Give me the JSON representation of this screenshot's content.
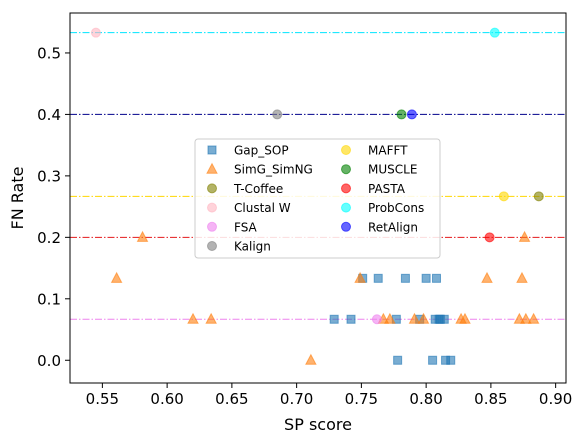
{
  "chart_data": {
    "type": "scatter",
    "xlabel": "SP score",
    "ylabel": "FN Rate",
    "xlim": [
      0.525,
      0.908
    ],
    "ylim": [
      -0.037,
      0.565
    ],
    "xticks": [
      0.55,
      0.6,
      0.65,
      0.7,
      0.75,
      0.8,
      0.85,
      0.9
    ],
    "xtick_labels": [
      "0.55",
      "0.60",
      "0.65",
      "0.70",
      "0.75",
      "0.80",
      "0.85",
      "0.90"
    ],
    "yticks": [
      0.0,
      0.1,
      0.2,
      0.3,
      0.4,
      0.5
    ],
    "ytick_labels": [
      "0.0",
      "0.1",
      "0.2",
      "0.3",
      "0.4",
      "0.5"
    ],
    "grid": false,
    "legend_position": "center-left, two columns",
    "hlines": [
      {
        "y": 0.533,
        "color": "#00e5ff"
      },
      {
        "y": 0.4,
        "color": "#00008b"
      },
      {
        "y": 0.2667,
        "color": "#ffd700"
      },
      {
        "y": 0.2,
        "color": "#e41a1c"
      },
      {
        "y": 0.0667,
        "color": "#ee82ee"
      }
    ],
    "series": [
      {
        "name": "Gap_SOP",
        "marker": "square",
        "color": "#1f77b4",
        "points": [
          [
            0.729,
            0.0667
          ],
          [
            0.742,
            0.0667
          ],
          [
            0.751,
            0.1333
          ],
          [
            0.763,
            0.1333
          ],
          [
            0.778,
            0.0
          ],
          [
            0.777,
            0.0667
          ],
          [
            0.784,
            0.1333
          ],
          [
            0.795,
            0.0667
          ],
          [
            0.8,
            0.1333
          ],
          [
            0.805,
            0.0
          ],
          [
            0.807,
            0.0667
          ],
          [
            0.808,
            0.1333
          ],
          [
            0.81,
            0.0667
          ],
          [
            0.811,
            0.0667
          ],
          [
            0.814,
            0.0667
          ],
          [
            0.815,
            0.0
          ],
          [
            0.819,
            0.0
          ]
        ]
      },
      {
        "name": "SimG_SimNG",
        "marker": "triangle",
        "color": "#ff7f0e",
        "points": [
          [
            0.561,
            0.1333
          ],
          [
            0.581,
            0.2
          ],
          [
            0.62,
            0.0667
          ],
          [
            0.634,
            0.0667
          ],
          [
            0.711,
            0.0
          ],
          [
            0.749,
            0.1333
          ],
          [
            0.767,
            0.0667
          ],
          [
            0.772,
            0.0667
          ],
          [
            0.791,
            0.0667
          ],
          [
            0.798,
            0.0667
          ],
          [
            0.827,
            0.0667
          ],
          [
            0.83,
            0.0667
          ],
          [
            0.847,
            0.1333
          ],
          [
            0.872,
            0.0667
          ],
          [
            0.874,
            0.1333
          ],
          [
            0.876,
            0.2
          ],
          [
            0.877,
            0.0667
          ],
          [
            0.883,
            0.0667
          ]
        ]
      },
      {
        "name": "T-Coffee",
        "marker": "circle",
        "color": "#808000",
        "points": [
          [
            0.887,
            0.2667
          ]
        ]
      },
      {
        "name": "Clustal W",
        "marker": "circle",
        "color": "#ffb6c1",
        "points": [
          [
            0.545,
            0.533
          ]
        ]
      },
      {
        "name": "FSA",
        "marker": "circle",
        "color": "#ee82ee",
        "points": [
          [
            0.762,
            0.0667
          ]
        ]
      },
      {
        "name": "Kalign",
        "marker": "circle",
        "color": "#808080",
        "points": [
          [
            0.685,
            0.4
          ]
        ]
      },
      {
        "name": "MAFFT",
        "marker": "circle",
        "color": "#ffd700",
        "points": [
          [
            0.86,
            0.2667
          ]
        ]
      },
      {
        "name": "MUSCLE",
        "marker": "circle",
        "color": "#008000",
        "points": [
          [
            0.781,
            0.4
          ]
        ]
      },
      {
        "name": "PASTA",
        "marker": "circle",
        "color": "#ff0000",
        "points": [
          [
            0.849,
            0.2
          ]
        ]
      },
      {
        "name": "ProbCons",
        "marker": "circle",
        "color": "#00ffff",
        "points": [
          [
            0.853,
            0.533
          ]
        ]
      },
      {
        "name": "RetAlign",
        "marker": "circle",
        "color": "#0000ff",
        "points": [
          [
            0.789,
            0.4
          ]
        ]
      }
    ]
  }
}
